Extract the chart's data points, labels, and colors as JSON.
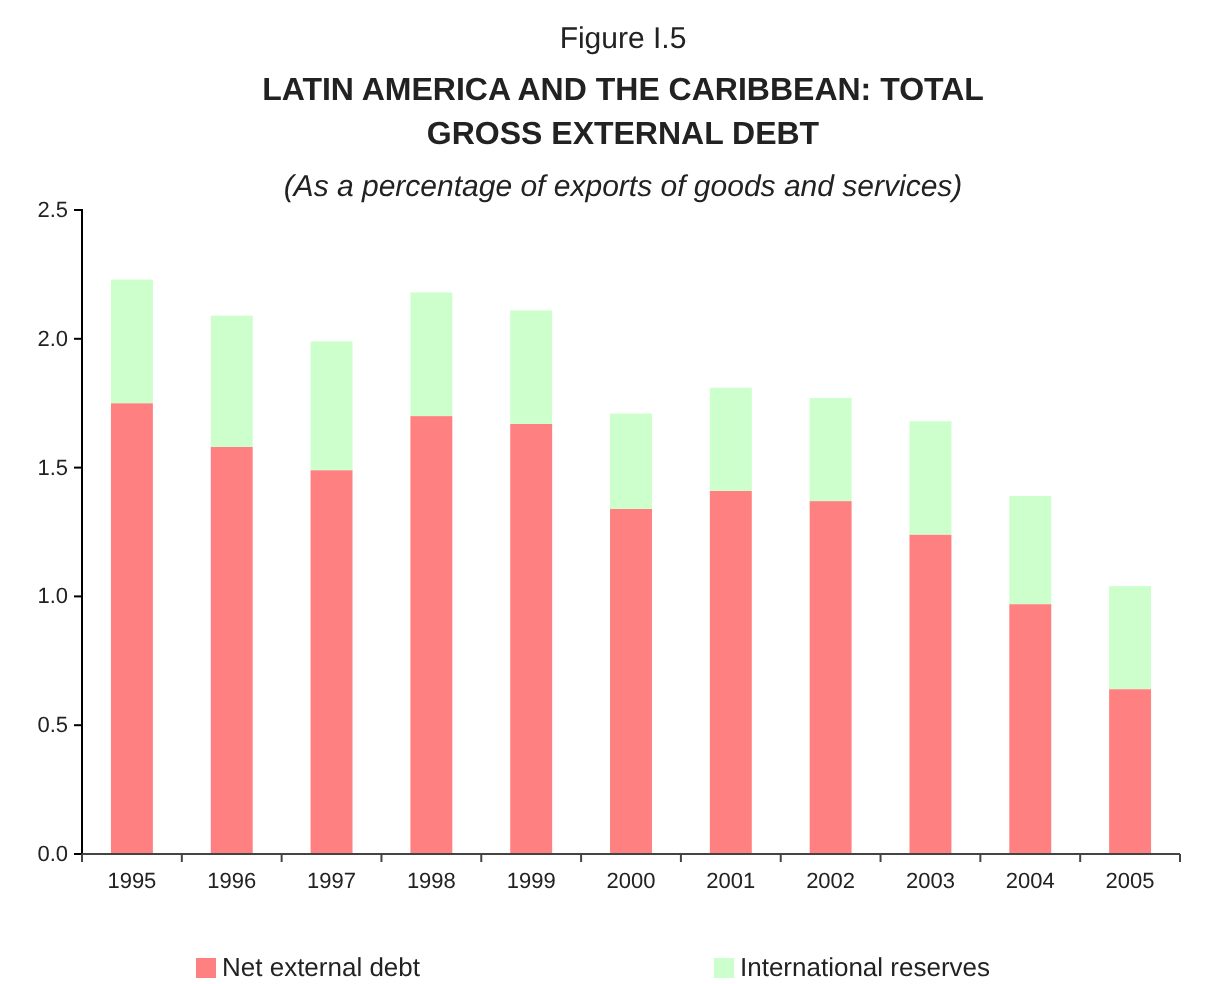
{
  "chart_data": {
    "type": "bar",
    "title": "LATIN AMERICA AND THE CARIBBEAN: TOTAL GROSS EXTERNAL DEBT",
    "subtitle": "(As a percentage of exports of goods and services)",
    "annotations": [
      "Figure I.5"
    ],
    "categories": [
      "1995",
      "1996",
      "1997",
      "1998",
      "1999",
      "2000",
      "2001",
      "2002",
      "2003",
      "2004",
      "2005"
    ],
    "stacked": true,
    "series": [
      {
        "name": "Net external debt",
        "color": "#ff8080",
        "values": [
          1.75,
          1.58,
          1.49,
          1.7,
          1.67,
          1.34,
          1.41,
          1.37,
          1.24,
          0.97,
          0.64
        ]
      },
      {
        "name": "International reserves",
        "color": "#ccffcc",
        "values": [
          0.48,
          0.51,
          0.5,
          0.48,
          0.44,
          0.37,
          0.4,
          0.4,
          0.44,
          0.42,
          0.4
        ]
      }
    ],
    "ylim": [
      0,
      2.5
    ],
    "yticks": [
      {
        "value": 0,
        "label": "0.0"
      },
      {
        "value": 0.5,
        "label": "0.5"
      },
      {
        "value": 1,
        "label": "1.0"
      },
      {
        "value": 1.5,
        "label": "1.5"
      },
      {
        "value": 2,
        "label": "2.0"
      },
      {
        "value": 2.5,
        "label": "2.5"
      }
    ],
    "grid": false,
    "legend": "bottom"
  }
}
